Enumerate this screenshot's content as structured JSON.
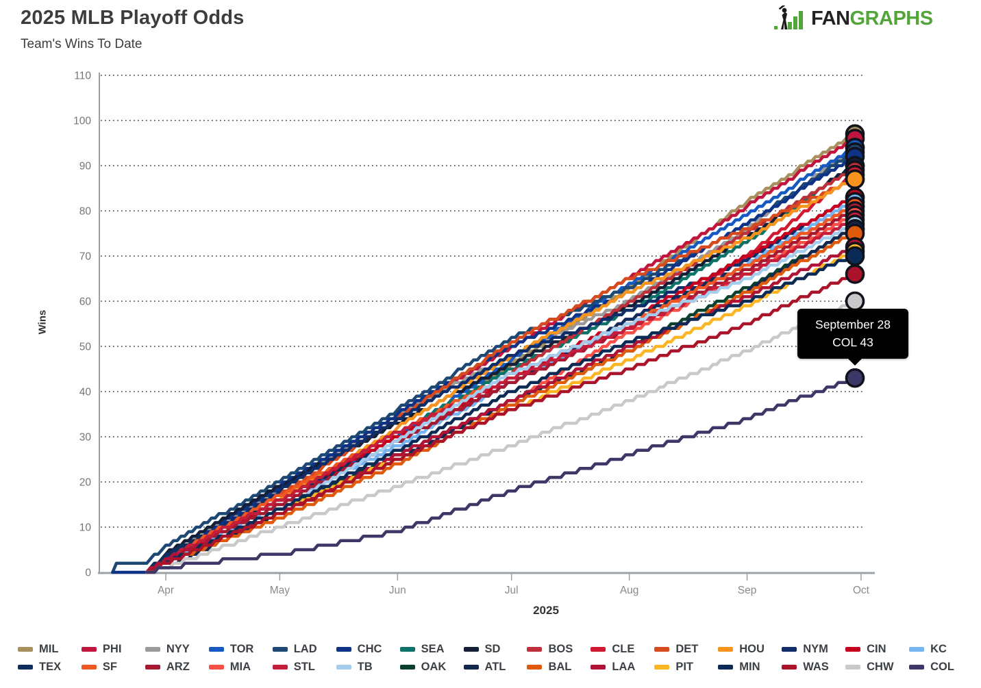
{
  "header": {
    "title": "2025 MLB Playoff Odds",
    "subtitle": "Team's Wins To Date",
    "logo": {
      "fan": "FAN",
      "graphs": "GRAPHS",
      "green": "#53a53a",
      "black": "#232323"
    }
  },
  "tooltip": {
    "line1": "September 28",
    "line2": "COL 43"
  },
  "chart_data": {
    "type": "line",
    "title": "2025 MLB Playoff Odds",
    "subtitle": "Team's Wins To Date",
    "xlabel": "2025",
    "ylabel": "Wins",
    "ylim": [
      0,
      110
    ],
    "yticks": [
      0,
      10,
      20,
      30,
      40,
      50,
      60,
      70,
      80,
      90,
      100,
      110
    ],
    "xticks": [
      "Apr",
      "May",
      "Jun",
      "Jul",
      "Aug",
      "Sep",
      "Oct"
    ],
    "xtick_days": [
      0,
      30,
      61,
      91,
      122,
      153,
      183
    ],
    "grid": "dotted-horizontal",
    "legend_position": "bottom",
    "days": [
      -5,
      0,
      30,
      61,
      91,
      122,
      153,
      181
    ],
    "series": [
      {
        "name": "MIL",
        "color": "#a8905e",
        "wins": [
          0,
          2,
          16,
          29,
          46,
          63,
          82,
          97
        ]
      },
      {
        "name": "PHI",
        "color": "#c2153d",
        "wins": [
          0,
          3,
          18,
          34,
          50,
          65,
          81,
          96
        ]
      },
      {
        "name": "NYY",
        "color": "#9a9a9a",
        "wins": [
          0,
          4,
          18,
          35,
          48,
          60,
          76,
          94
        ]
      },
      {
        "name": "TOR",
        "color": "#1659c2",
        "wins": [
          0,
          2,
          15,
          30,
          47,
          64,
          79,
          94
        ]
      },
      {
        "name": "LAD",
        "color": "#1d4873",
        "days": [
          -14,
          -13,
          -5,
          0,
          30,
          61,
          91,
          122,
          153,
          181
        ],
        "wins": [
          0,
          2,
          2,
          6,
          20,
          36,
          52,
          63,
          77,
          93
        ]
      },
      {
        "name": "CHC",
        "color": "#0e3386",
        "days": [
          -14,
          -5,
          0,
          30,
          61,
          91,
          122,
          153,
          181
        ],
        "wins": [
          0,
          0,
          3,
          19,
          35,
          50,
          62,
          77,
          92
        ]
      },
      {
        "name": "SEA",
        "color": "#0d7369",
        "wins": [
          0,
          3,
          16,
          31,
          45,
          58,
          73,
          90
        ]
      },
      {
        "name": "SD",
        "color": "#132038",
        "wins": [
          0,
          4,
          19,
          33,
          46,
          59,
          74,
          90
        ]
      },
      {
        "name": "BOS",
        "color": "#bd3039",
        "wins": [
          0,
          3,
          17,
          30,
          44,
          60,
          75,
          89
        ]
      },
      {
        "name": "CLE",
        "color": "#d11a32",
        "wins": [
          0,
          3,
          16,
          30,
          42,
          54,
          70,
          88
        ]
      },
      {
        "name": "DET",
        "color": "#d74a1e",
        "wins": [
          0,
          3,
          17,
          34,
          51,
          65,
          76,
          87
        ]
      },
      {
        "name": "HOU",
        "color": "#f7941e",
        "wins": [
          0,
          3,
          16,
          32,
          48,
          62,
          74,
          87
        ]
      },
      {
        "name": "NYM",
        "color": "#0f2d69",
        "wins": [
          0,
          2,
          18,
          34,
          48,
          58,
          69,
          83
        ]
      },
      {
        "name": "CIN",
        "color": "#c6011f",
        "wins": [
          0,
          2,
          16,
          30,
          43,
          56,
          70,
          83
        ]
      },
      {
        "name": "KC",
        "color": "#76b4f2",
        "wins": [
          0,
          2,
          15,
          28,
          42,
          55,
          68,
          82
        ]
      },
      {
        "name": "TEX",
        "color": "#0f2d5c",
        "wins": [
          0,
          4,
          16,
          29,
          42,
          56,
          68,
          81
        ]
      },
      {
        "name": "SF",
        "color": "#ef5723",
        "wins": [
          0,
          3,
          17,
          31,
          44,
          55,
          68,
          81
        ]
      },
      {
        "name": "ARZ",
        "color": "#a71930",
        "wins": [
          0,
          3,
          15,
          29,
          42,
          54,
          67,
          80
        ]
      },
      {
        "name": "MIA",
        "color": "#f94f46",
        "wins": [
          0,
          2,
          13,
          25,
          38,
          53,
          66,
          79
        ]
      },
      {
        "name": "STL",
        "color": "#c41e3a",
        "wins": [
          0,
          3,
          16,
          31,
          43,
          54,
          66,
          78
        ]
      },
      {
        "name": "TB",
        "color": "#a3cced",
        "wins": [
          0,
          2,
          14,
          29,
          44,
          55,
          65,
          77
        ]
      },
      {
        "name": "OAK",
        "color": "#09402e",
        "wins": [
          0,
          2,
          14,
          26,
          38,
          50,
          63,
          76
        ]
      },
      {
        "name": "ATL",
        "color": "#13274f",
        "wins": [
          0,
          1,
          13,
          25,
          38,
          49,
          62,
          76
        ]
      },
      {
        "name": "BAL",
        "color": "#e05a0c",
        "wins": [
          0,
          2,
          12,
          24,
          37,
          49,
          62,
          75
        ]
      },
      {
        "name": "LAA",
        "color": "#b01335",
        "wins": [
          0,
          3,
          13,
          26,
          38,
          50,
          61,
          72
        ]
      },
      {
        "name": "PIT",
        "color": "#fcb525",
        "wins": [
          0,
          2,
          14,
          25,
          36,
          47,
          59,
          71
        ]
      },
      {
        "name": "MIN",
        "color": "#0b2b56",
        "wins": [
          0,
          2,
          14,
          27,
          40,
          51,
          60,
          70
        ]
      },
      {
        "name": "WAS",
        "color": "#aa1329",
        "wins": [
          0,
          2,
          13,
          25,
          36,
          45,
          55,
          66
        ]
      },
      {
        "name": "CHW",
        "color": "#c9c9c9",
        "wins": [
          0,
          1,
          10,
          19,
          28,
          38,
          49,
          60
        ]
      },
      {
        "name": "COL",
        "color": "#3d3768",
        "wins": [
          0,
          1,
          4,
          9,
          18,
          26,
          34,
          43
        ]
      }
    ]
  }
}
